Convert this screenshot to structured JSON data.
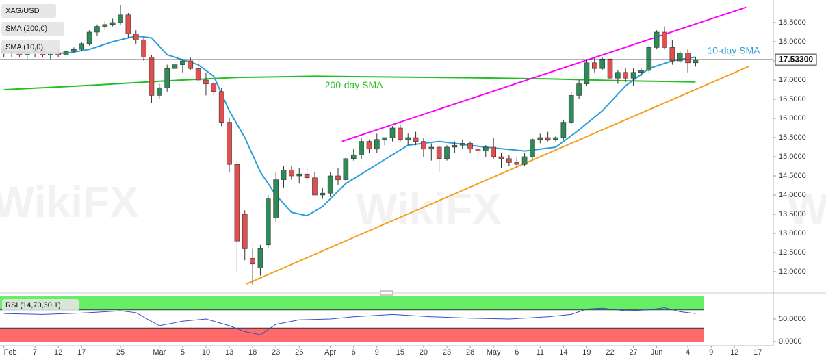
{
  "chart_data": [
    {
      "type": "candlestick",
      "title": "XAG/USD",
      "open": [
        17.8,
        17.7,
        17.75,
        17.65,
        17.7,
        17.8,
        17.65,
        17.7,
        17.65,
        17.75,
        17.8,
        17.95,
        18.25,
        18.4,
        18.45,
        18.5,
        18.7,
        18.2,
        18.05,
        17.6,
        16.6,
        16.8,
        17.3,
        17.4,
        17.5,
        17.3,
        17.0,
        16.9,
        16.7,
        15.9,
        14.8,
        13.5,
        12.35,
        12.1,
        12.7,
        13.4,
        14.4,
        14.65,
        14.5,
        14.55,
        14.45,
        14.0,
        14.05,
        14.5,
        14.4,
        14.95,
        15.05,
        15.4,
        15.2,
        15.45,
        15.5,
        15.75,
        15.45,
        15.5,
        15.4,
        15.2,
        15.25,
        14.95,
        15.25,
        15.3,
        15.35,
        15.2,
        15.15,
        15.25,
        15.0,
        14.95,
        14.85,
        14.8,
        15.0,
        15.45,
        15.5,
        15.45,
        15.5,
        15.9,
        16.6,
        16.9,
        17.45,
        17.3,
        17.55,
        17.05,
        17.2,
        17.05,
        17.2,
        17.25,
        17.85,
        18.25,
        17.85,
        17.5,
        17.7,
        17.45
      ],
      "high": [
        17.9,
        17.8,
        17.85,
        17.8,
        17.85,
        17.85,
        17.75,
        17.8,
        17.8,
        17.85,
        18.0,
        18.3,
        18.45,
        18.55,
        18.6,
        18.95,
        18.75,
        18.3,
        18.1,
        17.65,
        16.9,
        17.4,
        17.5,
        17.55,
        17.6,
        17.55,
        17.2,
        16.95,
        16.8,
        16.0,
        14.9,
        13.6,
        12.6,
        12.7,
        14.0,
        14.6,
        14.75,
        14.75,
        14.7,
        14.7,
        14.6,
        14.2,
        14.6,
        14.7,
        15.0,
        15.2,
        15.5,
        15.45,
        15.6,
        15.5,
        15.8,
        15.85,
        15.6,
        15.65,
        15.5,
        15.35,
        15.3,
        15.3,
        15.4,
        15.45,
        15.4,
        15.3,
        15.3,
        15.5,
        15.1,
        15.05,
        15.0,
        15.1,
        15.5,
        15.6,
        15.65,
        15.55,
        15.95,
        16.7,
        17.0,
        17.55,
        17.6,
        17.6,
        17.6,
        17.25,
        17.3,
        17.3,
        17.3,
        17.9,
        18.3,
        18.4,
        18.05,
        17.75,
        17.8,
        17.6
      ],
      "low": [
        17.6,
        17.6,
        17.6,
        17.55,
        17.6,
        17.6,
        17.55,
        17.6,
        17.6,
        17.7,
        17.75,
        17.9,
        18.15,
        18.3,
        18.4,
        18.45,
        18.1,
        17.95,
        17.5,
        16.4,
        16.5,
        16.7,
        17.15,
        17.2,
        17.25,
        16.9,
        16.6,
        16.6,
        15.8,
        14.6,
        12.0,
        12.3,
        11.65,
        11.9,
        12.6,
        13.3,
        14.2,
        14.4,
        14.3,
        14.3,
        14.0,
        13.9,
        13.95,
        14.25,
        14.3,
        14.9,
        14.95,
        15.1,
        15.1,
        15.3,
        15.4,
        15.4,
        15.3,
        15.3,
        15.0,
        14.9,
        14.6,
        14.9,
        15.1,
        15.2,
        15.1,
        14.9,
        15.0,
        14.95,
        14.7,
        14.75,
        14.7,
        14.75,
        14.95,
        15.35,
        15.4,
        15.4,
        15.45,
        15.85,
        16.5,
        16.85,
        17.2,
        17.25,
        16.9,
        16.9,
        16.95,
        16.85,
        17.1,
        17.2,
        17.8,
        17.8,
        17.4,
        17.45,
        17.2,
        17.35
      ],
      "close": [
        17.7,
        17.75,
        17.65,
        17.7,
        17.8,
        17.65,
        17.7,
        17.65,
        17.75,
        17.8,
        17.95,
        18.25,
        18.4,
        18.45,
        18.5,
        18.7,
        18.2,
        18.05,
        17.6,
        16.6,
        16.8,
        17.3,
        17.4,
        17.5,
        17.3,
        17.0,
        16.9,
        16.7,
        15.9,
        14.8,
        12.8,
        12.6,
        12.2,
        12.6,
        13.9,
        14.4,
        14.65,
        14.5,
        14.55,
        14.45,
        14.0,
        14.05,
        14.5,
        14.4,
        14.95,
        15.05,
        15.4,
        15.2,
        15.45,
        15.5,
        15.75,
        15.45,
        15.5,
        15.4,
        15.2,
        15.25,
        14.95,
        15.25,
        15.3,
        15.35,
        15.2,
        15.15,
        15.25,
        15.0,
        14.95,
        14.85,
        14.8,
        15.0,
        15.45,
        15.5,
        15.45,
        15.5,
        15.9,
        16.6,
        16.9,
        17.45,
        17.3,
        17.55,
        17.05,
        17.2,
        17.05,
        17.2,
        17.25,
        17.85,
        18.25,
        17.85,
        17.5,
        17.7,
        17.45,
        17.533
      ],
      "up_color": "#2e8b57",
      "down_color": "#e0504f",
      "series": [
        {
          "name": "SMA (200,0)",
          "color": "#22c022",
          "x": [
            0,
            10,
            20,
            30,
            40,
            50,
            60,
            70,
            80,
            89
          ],
          "values": [
            16.75,
            16.85,
            16.97,
            17.07,
            17.1,
            17.08,
            17.06,
            17.03,
            16.98,
            16.95
          ]
        },
        {
          "name": "SMA (10,0)",
          "color": "#2a9fd8",
          "x": [
            0,
            4,
            8,
            11,
            14,
            17,
            19,
            21,
            25,
            27,
            29,
            31,
            33,
            35,
            37,
            39,
            41,
            44,
            48,
            52,
            56,
            62,
            67,
            71,
            74,
            77,
            80,
            83,
            86,
            89
          ],
          "values": [
            17.75,
            17.72,
            17.7,
            17.8,
            18.0,
            18.15,
            18.1,
            17.66,
            17.4,
            17.1,
            16.2,
            15.5,
            14.6,
            14.0,
            13.55,
            13.46,
            13.7,
            14.3,
            14.8,
            15.3,
            15.4,
            15.25,
            15.15,
            15.25,
            15.7,
            16.2,
            16.85,
            17.3,
            17.5,
            17.6
          ]
        }
      ],
      "trendlines": [
        {
          "color": "#ff00ff",
          "x": [
            43.5,
            95.5
          ],
          "values": [
            15.4,
            18.9
          ]
        },
        {
          "color": "#f5a020",
          "x": [
            31.2,
            95.9
          ],
          "values": [
            11.68,
            17.36
          ]
        }
      ],
      "annotations": [
        {
          "text": "10-day SMA",
          "color": "#2a9fd8",
          "x": 90.5,
          "y": 17.75
        },
        {
          "text": "200-day SMA",
          "color": "#22c022",
          "x": 41.3,
          "y": 16.85
        }
      ],
      "last_price": {
        "value": 17.533,
        "label": "17.53300"
      },
      "xlim": [
        -0.5,
        99
      ],
      "xticks": [
        {
          "value": 0,
          "label": "Feb"
        },
        {
          "value": 4,
          "label": "7"
        },
        {
          "value": 7,
          "label": "12"
        },
        {
          "value": 10,
          "label": "17"
        },
        {
          "value": 15,
          "label": "25"
        },
        {
          "value": 20,
          "label": "Mar"
        },
        {
          "value": 23,
          "label": "5"
        },
        {
          "value": 26,
          "label": "10"
        },
        {
          "value": 29,
          "label": "13"
        },
        {
          "value": 32,
          "label": "18"
        },
        {
          "value": 35,
          "label": "23"
        },
        {
          "value": 38,
          "label": "26"
        },
        {
          "value": 42,
          "label": "Apr"
        },
        {
          "value": 45,
          "label": "6"
        },
        {
          "value": 48,
          "label": "9"
        },
        {
          "value": 51,
          "label": "15"
        },
        {
          "value": 54,
          "label": "20"
        },
        {
          "value": 57,
          "label": "23"
        },
        {
          "value": 60,
          "label": "28"
        },
        {
          "value": 63,
          "label": "May"
        },
        {
          "value": 66,
          "label": "6"
        },
        {
          "value": 69,
          "label": "11"
        },
        {
          "value": 72,
          "label": "14"
        },
        {
          "value": 75,
          "label": "19"
        },
        {
          "value": 78,
          "label": "22"
        },
        {
          "value": 81,
          "label": "27"
        },
        {
          "value": 84,
          "label": "Jun"
        },
        {
          "value": 88,
          "label": "4"
        },
        {
          "value": 91,
          "label": "9"
        },
        {
          "value": 94,
          "label": "12"
        },
        {
          "value": 97,
          "label": "17"
        }
      ],
      "ylim": [
        11.5,
        19.0
      ],
      "yticks": [
        {
          "value": 12,
          "label": "12.0000"
        },
        {
          "value": 12.5,
          "label": "12.5000"
        },
        {
          "value": 13,
          "label": "13.0000"
        },
        {
          "value": 13.5,
          "label": "13.5000"
        },
        {
          "value": 14,
          "label": "14.0000"
        },
        {
          "value": 14.5,
          "label": "14.5000"
        },
        {
          "value": 15,
          "label": "15.0000"
        },
        {
          "value": 15.5,
          "label": "15.5000"
        },
        {
          "value": 16,
          "label": "16.0000"
        },
        {
          "value": 16.5,
          "label": "16.5000"
        },
        {
          "value": 17,
          "label": "17.0000"
        },
        {
          "value": 17.5,
          "label": "17.5000"
        },
        {
          "value": 18,
          "label": "18.0000"
        },
        {
          "value": 18.5,
          "label": "18.5000"
        }
      ],
      "grid": false,
      "watermark": "WikiFX"
    },
    {
      "type": "line",
      "title": "RSI (14,70,30,1)",
      "series": [
        {
          "name": "RSI",
          "color": "#3050c8",
          "x": [
            0,
            5,
            10,
            15,
            17,
            20,
            23,
            26,
            29,
            31,
            33,
            35,
            38,
            42,
            45,
            48,
            50,
            55,
            60,
            65,
            70,
            73,
            75,
            77,
            80,
            83,
            85,
            87,
            89
          ],
          "values": [
            62,
            60,
            63,
            68,
            64,
            35,
            45,
            50,
            35,
            22,
            15,
            38,
            48,
            50,
            55,
            58,
            60,
            55,
            52,
            50,
            55,
            60,
            72,
            74,
            68,
            70,
            75,
            66,
            62
          ]
        }
      ],
      "overbought": 70,
      "oversold": 30,
      "overbought_color": "#66ee66",
      "oversold_color": "#ff6b6b",
      "ylim": [
        0,
        100
      ],
      "yticks": [
        {
          "value": 0,
          "label": "0.0000"
        },
        {
          "value": 50,
          "label": "50.0000"
        }
      ]
    }
  ]
}
